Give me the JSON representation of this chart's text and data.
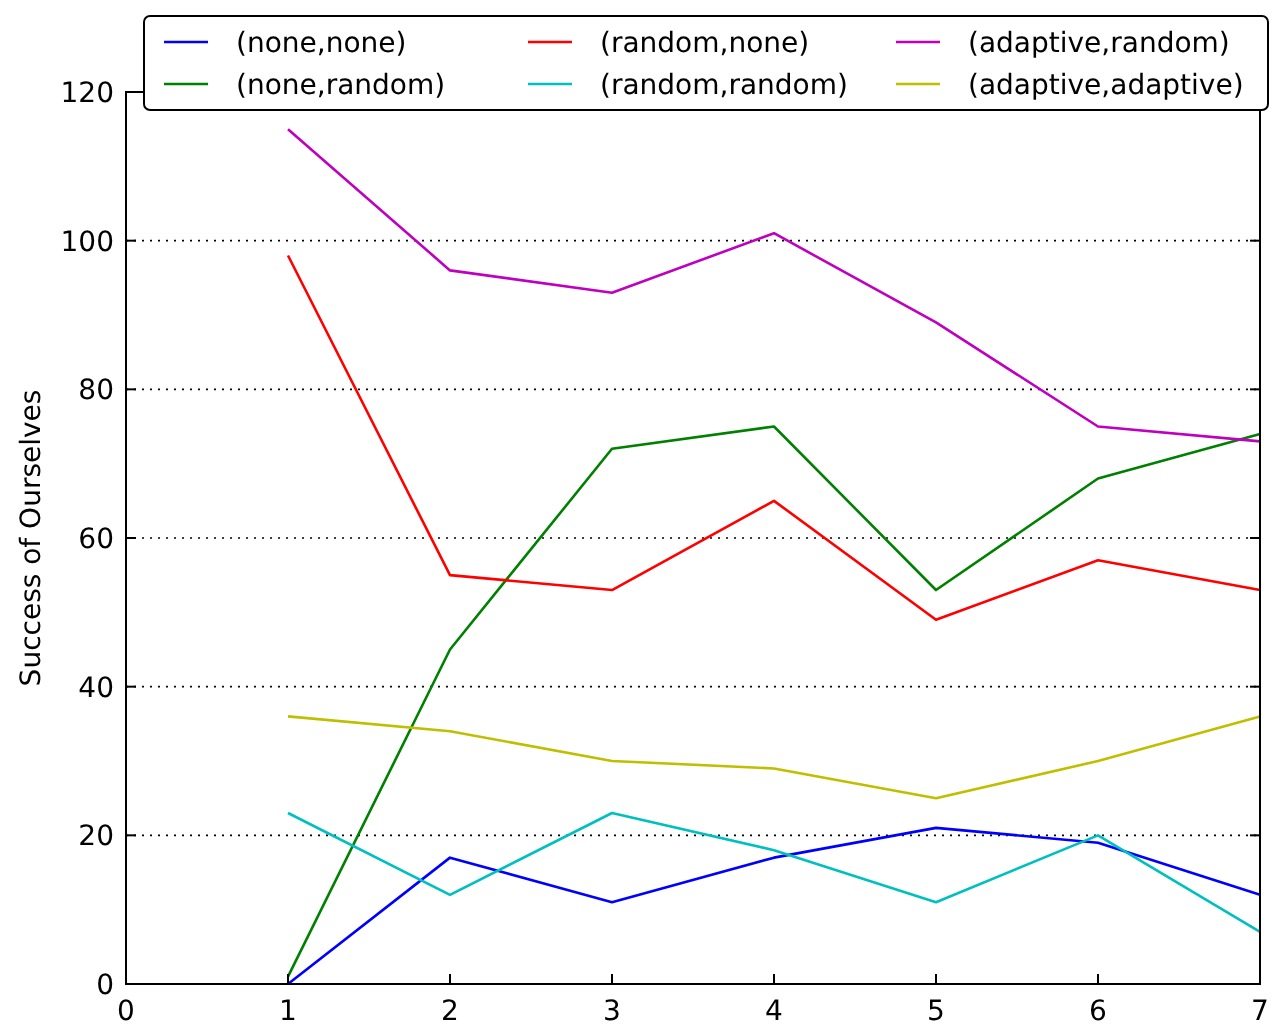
{
  "chart_data": {
    "type": "line",
    "ylabel": "Success of Ourselves",
    "x": [
      1,
      2,
      3,
      4,
      5,
      6,
      7
    ],
    "xlim": [
      0,
      7
    ],
    "xticks": [
      0,
      1,
      2,
      3,
      4,
      5,
      6,
      7
    ],
    "ylim": [
      0,
      120
    ],
    "yticks": [
      0,
      20,
      40,
      60,
      80,
      100,
      120
    ],
    "grid": "y",
    "legend": "top",
    "line_style": "solid",
    "series": [
      {
        "name": "(none,none)",
        "color": "#0000ff",
        "values": [
          0,
          17,
          11,
          17,
          21,
          19,
          12
        ]
      },
      {
        "name": "(none,random)",
        "color": "#008000",
        "values": [
          1,
          45,
          72,
          75,
          53,
          68,
          74
        ]
      },
      {
        "name": "(random,none)",
        "color": "#ff0000",
        "values": [
          98,
          55,
          53,
          65,
          49,
          57,
          53
        ]
      },
      {
        "name": "(random,random)",
        "color": "#00bfbf",
        "values": [
          23,
          12,
          23,
          18,
          11,
          20,
          7
        ]
      },
      {
        "name": "(adaptive,random)",
        "color": "#bf00bf",
        "values": [
          115,
          96,
          93,
          101,
          89,
          75,
          73
        ]
      },
      {
        "name": "(adaptive,adaptive)",
        "color": "#bfbf00",
        "values": [
          36,
          34,
          30,
          29,
          25,
          30,
          36
        ]
      }
    ]
  }
}
